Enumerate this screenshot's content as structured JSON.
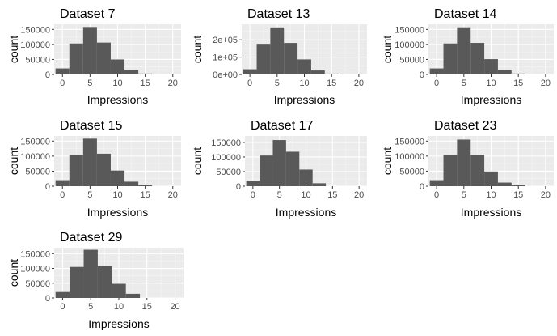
{
  "colors": {
    "panel_background": "#ebebeb",
    "grid_major": "#ffffff",
    "grid_minor": "#f5f5f5",
    "bar_fill": "#595959",
    "tick_text": "#4d4d4d",
    "tick_mark": "#333333"
  },
  "chart_data": [
    {
      "type": "bar",
      "title": "Dataset 7",
      "xlabel": "Impressions",
      "ylabel": "count",
      "xlim": [
        -1.5,
        21.5
      ],
      "xticks": [
        0,
        5,
        10,
        15,
        20
      ],
      "xtick_labels": [
        "0",
        "5",
        "10",
        "15",
        "20"
      ],
      "ylim": [
        0,
        167000
      ],
      "yticks": [
        0,
        50000,
        100000,
        150000
      ],
      "ytick_labels": [
        "0",
        "50000",
        "100000",
        "150000"
      ],
      "bin_width": 2.5,
      "bins": [
        -1.25,
        1.25,
        3.75,
        6.25,
        8.75,
        11.25,
        13.75
      ],
      "values": [
        20000,
        103000,
        158000,
        106000,
        50000,
        14000,
        3000
      ]
    },
    {
      "type": "bar",
      "title": "Dataset 13",
      "xlabel": "Impressions",
      "ylabel": "count",
      "xlim": [
        -1.5,
        21.5
      ],
      "xticks": [
        0,
        5,
        10,
        15,
        20
      ],
      "xtick_labels": [
        "0",
        "5",
        "10",
        "15",
        "20"
      ],
      "ylim": [
        0,
        290000
      ],
      "yticks": [
        0,
        100000,
        200000
      ],
      "ytick_labels": [
        "0e+00",
        "1e+05",
        "2e+05"
      ],
      "bin_width": 2.5,
      "bins": [
        -1.25,
        1.25,
        3.75,
        6.25,
        8.75,
        11.25,
        13.75
      ],
      "values": [
        30000,
        177000,
        272000,
        182000,
        87000,
        23000,
        5000
      ]
    },
    {
      "type": "bar",
      "title": "Dataset 14",
      "xlabel": "Impressions",
      "ylabel": "count",
      "xlim": [
        -1.5,
        21.5
      ],
      "xticks": [
        0,
        5,
        10,
        15,
        20
      ],
      "xtick_labels": [
        "0",
        "5",
        "10",
        "15",
        "20"
      ],
      "ylim": [
        0,
        167000
      ],
      "yticks": [
        0,
        50000,
        100000,
        150000
      ],
      "ytick_labels": [
        "0",
        "50000",
        "100000",
        "150000"
      ],
      "bin_width": 2.5,
      "bins": [
        -1.25,
        1.25,
        3.75,
        6.25,
        8.75,
        11.25,
        13.75
      ],
      "values": [
        20000,
        103000,
        157000,
        105000,
        51000,
        14000,
        3000
      ]
    },
    {
      "type": "bar",
      "title": "Dataset 15",
      "xlabel": "Impressions",
      "ylabel": "count",
      "xlim": [
        -1.5,
        21.5
      ],
      "xticks": [
        0,
        5,
        10,
        15,
        20
      ],
      "xtick_labels": [
        "0",
        "5",
        "10",
        "15",
        "20"
      ],
      "ylim": [
        0,
        167000
      ],
      "yticks": [
        0,
        50000,
        100000,
        150000
      ],
      "ytick_labels": [
        "0",
        "50000",
        "100000",
        "150000"
      ],
      "bin_width": 2.5,
      "bins": [
        -1.25,
        1.25,
        3.75,
        6.25,
        8.75,
        11.25,
        13.75
      ],
      "values": [
        20000,
        103000,
        158000,
        108000,
        52000,
        15000,
        3000
      ]
    },
    {
      "type": "bar",
      "title": "Dataset 17",
      "xlabel": "Impressions",
      "ylabel": "count",
      "xlim": [
        -1.5,
        21.5
      ],
      "xticks": [
        0,
        5,
        10,
        15,
        20
      ],
      "xtick_labels": [
        "0",
        "5",
        "10",
        "15",
        "20"
      ],
      "ylim": [
        0,
        172000
      ],
      "yticks": [
        0,
        50000,
        100000,
        150000
      ],
      "ytick_labels": [
        "0",
        "50000",
        "100000",
        "150000"
      ],
      "bin_width": 2.5,
      "bins": [
        -1.25,
        1.25,
        3.75,
        6.25,
        8.75,
        11.25
      ],
      "values": [
        18000,
        105000,
        158000,
        118000,
        57000,
        10000
      ]
    },
    {
      "type": "bar",
      "title": "Dataset 23",
      "xlabel": "Impressions",
      "ylabel": "count",
      "xlim": [
        -1.5,
        21.5
      ],
      "xticks": [
        0,
        5,
        10,
        15,
        20
      ],
      "xtick_labels": [
        "0",
        "5",
        "10",
        "15",
        "20"
      ],
      "ylim": [
        0,
        167000
      ],
      "yticks": [
        0,
        50000,
        100000,
        150000
      ],
      "ytick_labels": [
        "0",
        "50000",
        "100000",
        "150000"
      ],
      "bin_width": 2.5,
      "bins": [
        -1.25,
        1.25,
        3.75,
        6.25,
        8.75,
        11.25,
        13.75
      ],
      "values": [
        20000,
        103000,
        155000,
        104000,
        49000,
        12000,
        3000
      ]
    },
    {
      "type": "bar",
      "title": "Dataset 29",
      "xlabel": "Impressions",
      "ylabel": "count",
      "xlim": [
        -1.5,
        21.5
      ],
      "xticks": [
        0,
        5,
        10,
        15,
        20
      ],
      "xtick_labels": [
        "0",
        "5",
        "10",
        "15",
        "20"
      ],
      "ylim": [
        0,
        170000
      ],
      "yticks": [
        0,
        50000,
        100000,
        150000
      ],
      "ytick_labels": [
        "0",
        "50000",
        "100000",
        "150000"
      ],
      "bin_width": 2.5,
      "bins": [
        -1.25,
        1.25,
        3.75,
        6.25,
        8.75,
        11.25
      ],
      "values": [
        20000,
        105000,
        163000,
        108000,
        48000,
        14000
      ]
    }
  ]
}
